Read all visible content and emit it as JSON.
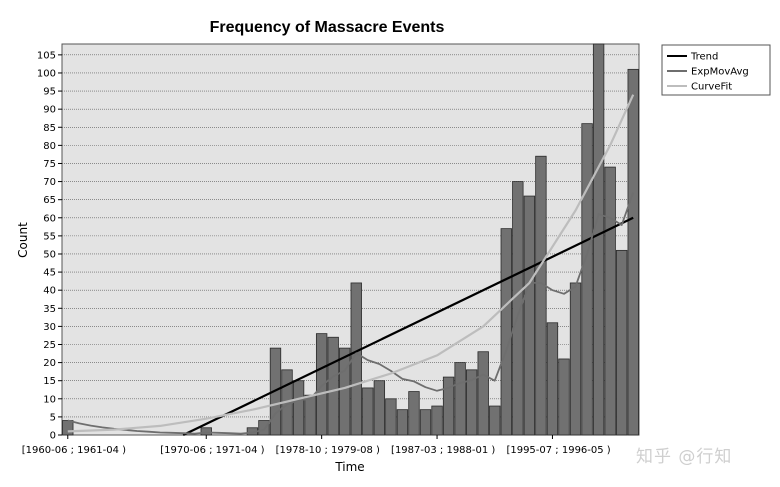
{
  "chart_data": {
    "type": "bar",
    "title": "Frequency of Massacre Events",
    "xlabel": "Time",
    "ylabel": "Count",
    "ylim": [
      0,
      108
    ],
    "yticks": [
      0,
      5,
      10,
      15,
      20,
      25,
      30,
      35,
      40,
      45,
      50,
      55,
      60,
      65,
      70,
      75,
      80,
      85,
      90,
      95,
      100,
      105
    ],
    "grid": true,
    "legend_position": "top-right",
    "xtick_labels": [
      {
        "index": 0,
        "label": "[1960-06 ; 1961-04 )"
      },
      {
        "index": 12,
        "label": "[1970-06 ; 1971-04 )"
      },
      {
        "index": 22,
        "label": "[1978-10 ; 1979-08 )"
      },
      {
        "index": 32,
        "label": "[1987-03 ; 1988-01 )"
      },
      {
        "index": 42,
        "label": "[1995-07 ; 1996-05 )"
      }
    ],
    "values": [
      4,
      0,
      0,
      0,
      0,
      0,
      0,
      0,
      0,
      0,
      0,
      0,
      2,
      0,
      0,
      0,
      2,
      4,
      24,
      18,
      15,
      11,
      28,
      27,
      24,
      42,
      13,
      15,
      10,
      7,
      12,
      7,
      8,
      16,
      20,
      18,
      23,
      8,
      57,
      70,
      66,
      77,
      31,
      21,
      42,
      86,
      108,
      74,
      51,
      101
    ],
    "series": [
      {
        "name": "Trend",
        "color": "#000000",
        "x": [
          10,
          49
        ],
        "y": [
          0,
          60
        ]
      },
      {
        "name": "ExpMovAvg",
        "color": "#6e6e6e",
        "x": [
          0,
          1,
          2,
          3,
          4,
          5,
          6,
          7,
          8,
          9,
          10,
          11,
          12,
          13,
          14,
          15,
          16,
          17,
          18,
          19,
          20,
          21,
          22,
          23,
          24,
          25,
          26,
          27,
          28,
          29,
          30,
          31,
          32,
          33,
          34,
          35,
          36,
          37,
          38,
          39,
          40,
          41,
          42,
          43,
          44,
          45,
          46,
          47,
          48,
          49
        ],
        "y": [
          4,
          3.2,
          2.6,
          2.1,
          1.7,
          1.4,
          1.1,
          0.9,
          0.7,
          0.6,
          0.5,
          0.4,
          0.7,
          0.6,
          0.5,
          0.4,
          0.7,
          1.4,
          6,
          8.4,
          9.7,
          9.9,
          13.5,
          16.2,
          17.8,
          22.6,
          20.7,
          19.6,
          17.7,
          15.5,
          14.8,
          13.2,
          12.2,
          13,
          14.4,
          15.1,
          16.7,
          15,
          23.4,
          33,
          42,
          42,
          40,
          39,
          41,
          50,
          61,
          60,
          58,
          67
        ]
      },
      {
        "name": "CurveFit",
        "color": "#bdbdbd",
        "x": [
          0,
          4,
          8,
          12,
          16,
          20,
          24,
          28,
          32,
          36,
          40,
          44,
          47,
          49
        ],
        "y": [
          1,
          1.5,
          2.5,
          4.5,
          7,
          10,
          13,
          17,
          22,
          30,
          42,
          62,
          80,
          94
        ]
      }
    ]
  },
  "watermark": "知乎 @行知"
}
